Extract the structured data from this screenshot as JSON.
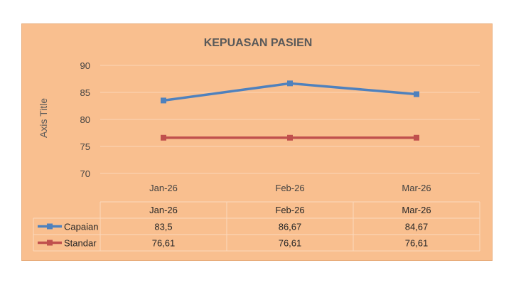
{
  "chart_data": {
    "type": "line",
    "title": "KEPUASAN PASIEN",
    "ylabel": "Axis Title",
    "xlabel": "",
    "categories": [
      "Jan-26",
      "Feb-26",
      "Mar-26"
    ],
    "ylim": [
      70,
      90
    ],
    "yticks": [
      70,
      75,
      80,
      85,
      90
    ],
    "grid": true,
    "legend": "data-table",
    "series": [
      {
        "name": "Capaian",
        "color": "#4f81bd",
        "marker": "square",
        "values": [
          83.5,
          86.67,
          84.67
        ],
        "labels": [
          "83,5",
          "86,67",
          "84,67"
        ]
      },
      {
        "name": "Standar",
        "color": "#c0504d",
        "marker": "square",
        "values": [
          76.61,
          76.61,
          76.61
        ],
        "labels": [
          "76,61",
          "76,61",
          "76,61"
        ]
      }
    ]
  }
}
